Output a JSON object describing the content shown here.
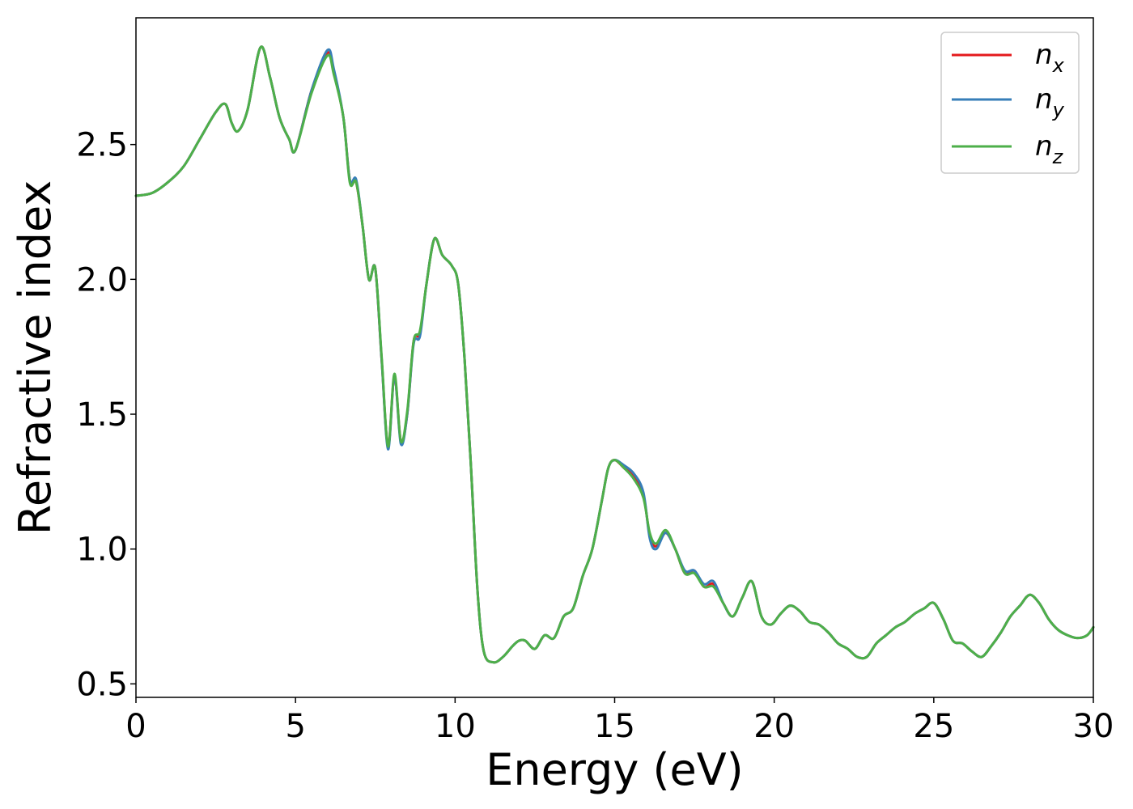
{
  "chart_data": {
    "type": "line",
    "title": "",
    "xlabel": "Energy (eV)",
    "ylabel": "Refractive index",
    "xlim": [
      0,
      30
    ],
    "ylim": [
      0.45,
      2.97
    ],
    "xticks": [
      0,
      5,
      10,
      15,
      20,
      25,
      30
    ],
    "xtick_labels": [
      "0",
      "5",
      "10",
      "15",
      "20",
      "25",
      "30"
    ],
    "yticks": [
      0.5,
      1.0,
      1.5,
      2.0,
      2.5
    ],
    "ytick_labels": [
      "0.5",
      "1.0",
      "1.5",
      "2.0",
      "2.5"
    ],
    "grid": false,
    "legend_position": "top-right",
    "colors": {
      "n_x": "#e41a1c",
      "n_y": "#377eb8",
      "n_z": "#4daf4a"
    },
    "x": [
      0,
      0.5,
      1,
      1.5,
      2,
      2.5,
      2.8,
      3.0,
      3.2,
      3.5,
      3.9,
      4.2,
      4.5,
      4.8,
      5.0,
      5.5,
      6.0,
      6.2,
      6.5,
      6.7,
      6.9,
      7.1,
      7.3,
      7.5,
      7.7,
      7.9,
      8.1,
      8.3,
      8.5,
      8.7,
      8.9,
      9.1,
      9.35,
      9.6,
      9.9,
      10.1,
      10.3,
      10.5,
      10.7,
      10.9,
      11.2,
      11.5,
      11.8,
      12.0,
      12.2,
      12.5,
      12.8,
      13.1,
      13.4,
      13.7,
      14.0,
      14.3,
      14.6,
      14.8,
      15.0,
      15.3,
      15.6,
      15.9,
      16.1,
      16.3,
      16.6,
      16.9,
      17.2,
      17.5,
      17.8,
      18.1,
      18.4,
      18.7,
      19.0,
      19.3,
      19.6,
      19.9,
      20.2,
      20.5,
      20.8,
      21.1,
      21.4,
      21.7,
      22.0,
      22.3,
      22.6,
      22.9,
      23.2,
      23.5,
      23.8,
      24.1,
      24.4,
      24.7,
      25.0,
      25.3,
      25.6,
      25.9,
      26.2,
      26.5,
      26.8,
      27.1,
      27.4,
      27.7,
      28.0,
      28.3,
      28.6,
      28.9,
      29.2,
      29.5,
      29.8,
      30.0
    ],
    "series": [
      {
        "name": "n_x",
        "label_main": "n",
        "label_sub": "x",
        "values": [
          2.31,
          2.32,
          2.36,
          2.42,
          2.52,
          2.62,
          2.65,
          2.58,
          2.55,
          2.63,
          2.86,
          2.75,
          2.6,
          2.52,
          2.48,
          2.7,
          2.84,
          2.77,
          2.6,
          2.37,
          2.36,
          2.2,
          2.0,
          2.04,
          1.7,
          1.38,
          1.64,
          1.4,
          1.5,
          1.77,
          1.8,
          1.98,
          2.15,
          2.09,
          2.05,
          1.98,
          1.7,
          1.3,
          0.85,
          0.62,
          0.58,
          0.6,
          0.64,
          0.66,
          0.66,
          0.63,
          0.68,
          0.67,
          0.75,
          0.78,
          0.9,
          1.0,
          1.18,
          1.3,
          1.33,
          1.3,
          1.27,
          1.2,
          1.05,
          1.01,
          1.06,
          1.0,
          0.91,
          0.92,
          0.86,
          0.87,
          0.8,
          0.75,
          0.82,
          0.88,
          0.75,
          0.72,
          0.76,
          0.79,
          0.77,
          0.73,
          0.72,
          0.69,
          0.65,
          0.63,
          0.6,
          0.6,
          0.65,
          0.68,
          0.71,
          0.73,
          0.76,
          0.78,
          0.8,
          0.74,
          0.66,
          0.65,
          0.62,
          0.6,
          0.64,
          0.69,
          0.75,
          0.79,
          0.83,
          0.8,
          0.74,
          0.7,
          0.68,
          0.67,
          0.68,
          0.71
        ]
      },
      {
        "name": "n_y",
        "label_main": "n",
        "label_sub": "y",
        "values": [
          2.31,
          2.32,
          2.36,
          2.42,
          2.52,
          2.62,
          2.65,
          2.58,
          2.55,
          2.63,
          2.86,
          2.75,
          2.6,
          2.52,
          2.48,
          2.7,
          2.85,
          2.78,
          2.6,
          2.37,
          2.37,
          2.2,
          2.0,
          2.04,
          1.7,
          1.37,
          1.64,
          1.39,
          1.5,
          1.76,
          1.79,
          1.98,
          2.15,
          2.09,
          2.05,
          1.98,
          1.7,
          1.3,
          0.85,
          0.62,
          0.58,
          0.6,
          0.64,
          0.66,
          0.66,
          0.63,
          0.68,
          0.67,
          0.75,
          0.78,
          0.9,
          1.0,
          1.18,
          1.3,
          1.33,
          1.31,
          1.28,
          1.21,
          1.04,
          1.0,
          1.06,
          1.0,
          0.92,
          0.92,
          0.87,
          0.88,
          0.8,
          0.75,
          0.82,
          0.88,
          0.75,
          0.72,
          0.76,
          0.79,
          0.77,
          0.73,
          0.72,
          0.69,
          0.65,
          0.63,
          0.6,
          0.6,
          0.65,
          0.68,
          0.71,
          0.73,
          0.76,
          0.78,
          0.8,
          0.74,
          0.66,
          0.65,
          0.62,
          0.6,
          0.64,
          0.69,
          0.75,
          0.79,
          0.83,
          0.8,
          0.74,
          0.7,
          0.68,
          0.67,
          0.68,
          0.71
        ]
      },
      {
        "name": "n_z",
        "label_main": "n",
        "label_sub": "z",
        "values": [
          2.31,
          2.32,
          2.36,
          2.42,
          2.52,
          2.62,
          2.65,
          2.58,
          2.55,
          2.63,
          2.86,
          2.75,
          2.6,
          2.52,
          2.48,
          2.69,
          2.83,
          2.76,
          2.6,
          2.36,
          2.36,
          2.2,
          2.0,
          2.04,
          1.71,
          1.38,
          1.65,
          1.4,
          1.51,
          1.77,
          1.81,
          1.98,
          2.15,
          2.09,
          2.05,
          1.98,
          1.7,
          1.3,
          0.85,
          0.62,
          0.58,
          0.6,
          0.64,
          0.66,
          0.66,
          0.63,
          0.68,
          0.67,
          0.75,
          0.78,
          0.9,
          1.0,
          1.18,
          1.3,
          1.33,
          1.3,
          1.26,
          1.19,
          1.06,
          1.02,
          1.07,
          1.0,
          0.91,
          0.91,
          0.86,
          0.86,
          0.8,
          0.75,
          0.82,
          0.88,
          0.75,
          0.72,
          0.76,
          0.79,
          0.77,
          0.73,
          0.72,
          0.69,
          0.65,
          0.63,
          0.6,
          0.6,
          0.65,
          0.68,
          0.71,
          0.73,
          0.76,
          0.78,
          0.8,
          0.74,
          0.66,
          0.65,
          0.62,
          0.6,
          0.64,
          0.69,
          0.75,
          0.79,
          0.83,
          0.8,
          0.74,
          0.7,
          0.68,
          0.67,
          0.68,
          0.71
        ]
      }
    ]
  }
}
